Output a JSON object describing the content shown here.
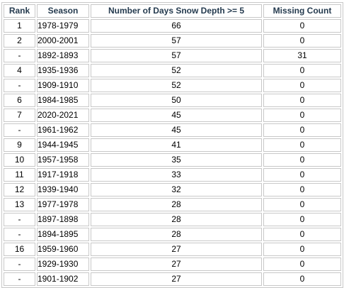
{
  "table": {
    "columns": [
      "Rank",
      "Season",
      "Number of Days Snow Depth >= 5",
      "Missing Count"
    ],
    "rows": [
      {
        "rank": "1",
        "season": "1978-1979",
        "days": "66",
        "missing": "0"
      },
      {
        "rank": "2",
        "season": "2000-2001",
        "days": "57",
        "missing": "0"
      },
      {
        "rank": "-",
        "season": "1892-1893",
        "days": "57",
        "missing": "31"
      },
      {
        "rank": "4",
        "season": "1935-1936",
        "days": "52",
        "missing": "0"
      },
      {
        "rank": "-",
        "season": "1909-1910",
        "days": "52",
        "missing": "0"
      },
      {
        "rank": "6",
        "season": "1984-1985",
        "days": "50",
        "missing": "0"
      },
      {
        "rank": "7",
        "season": "2020-2021",
        "days": "45",
        "missing": "0"
      },
      {
        "rank": "-",
        "season": "1961-1962",
        "days": "45",
        "missing": "0"
      },
      {
        "rank": "9",
        "season": "1944-1945",
        "days": "41",
        "missing": "0"
      },
      {
        "rank": "10",
        "season": "1957-1958",
        "days": "35",
        "missing": "0"
      },
      {
        "rank": "11",
        "season": "1917-1918",
        "days": "33",
        "missing": "0"
      },
      {
        "rank": "12",
        "season": "1939-1940",
        "days": "32",
        "missing": "0"
      },
      {
        "rank": "13",
        "season": "1977-1978",
        "days": "28",
        "missing": "0"
      },
      {
        "rank": "-",
        "season": "1897-1898",
        "days": "28",
        "missing": "0"
      },
      {
        "rank": "-",
        "season": "1894-1895",
        "days": "28",
        "missing": "0"
      },
      {
        "rank": "16",
        "season": "1959-1960",
        "days": "27",
        "missing": "0"
      },
      {
        "rank": "-",
        "season": "1929-1930",
        "days": "27",
        "missing": "0"
      },
      {
        "rank": "-",
        "season": "1901-1902",
        "days": "27",
        "missing": "0"
      }
    ]
  },
  "colors": {
    "header_text": "#243a4e",
    "border": "#c8c8c8"
  }
}
